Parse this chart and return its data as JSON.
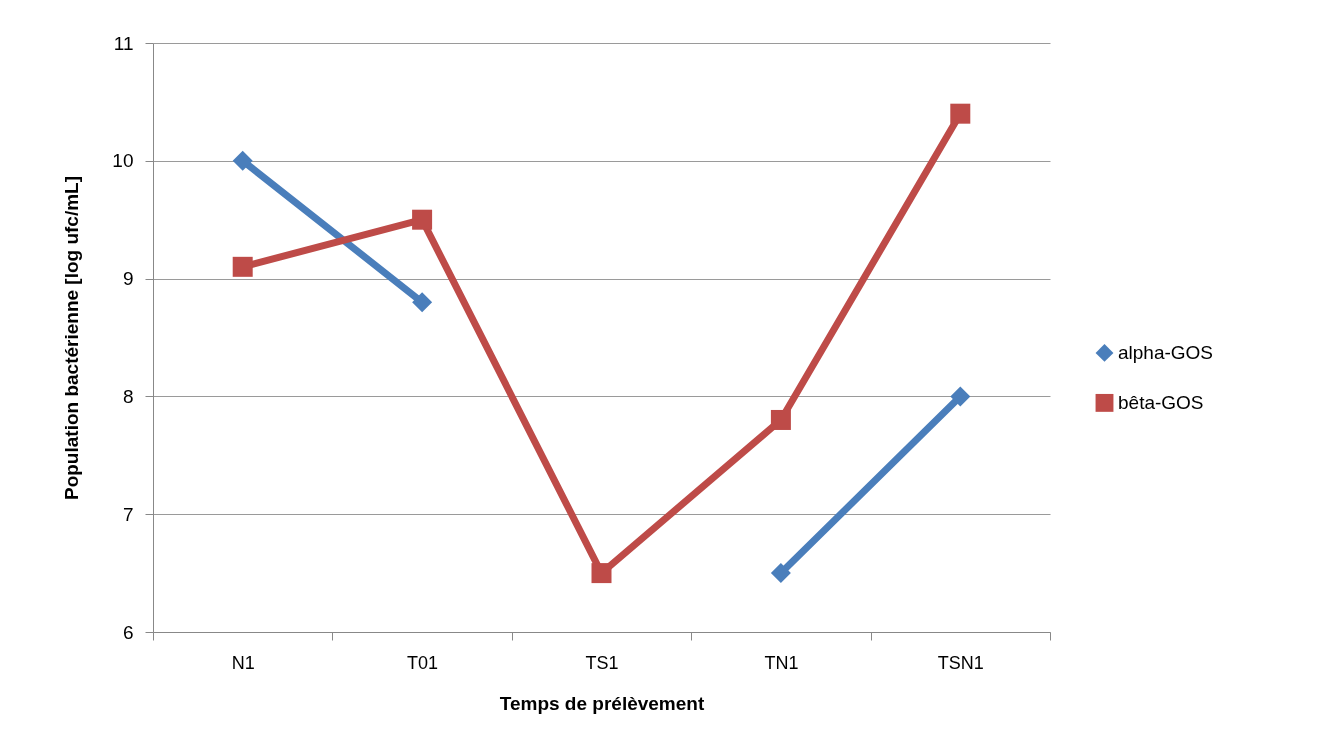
{
  "chart_data": {
    "type": "line",
    "categories": [
      "N1",
      "T01",
      "TS1",
      "TN1",
      "TSN1"
    ],
    "xlabel": "Temps de prélèvement",
    "ylabel": "Population bactérienne [log ufc/mL]",
    "ylim": [
      6,
      11
    ],
    "yticks": [
      6,
      7,
      8,
      9,
      10,
      11
    ],
    "grid": "y",
    "legend": "right",
    "line_style": "solid",
    "series": [
      {
        "name": "alpha-GOS",
        "color": "#4a7ebb",
        "marker": "diamond",
        "values": [
          10,
          8.8,
          null,
          6.5,
          8
        ]
      },
      {
        "name": "bêta-GOS",
        "color": "#be4b48",
        "marker": "square",
        "values": [
          9.1,
          9.5,
          6.5,
          7.8,
          10.4
        ]
      }
    ]
  }
}
